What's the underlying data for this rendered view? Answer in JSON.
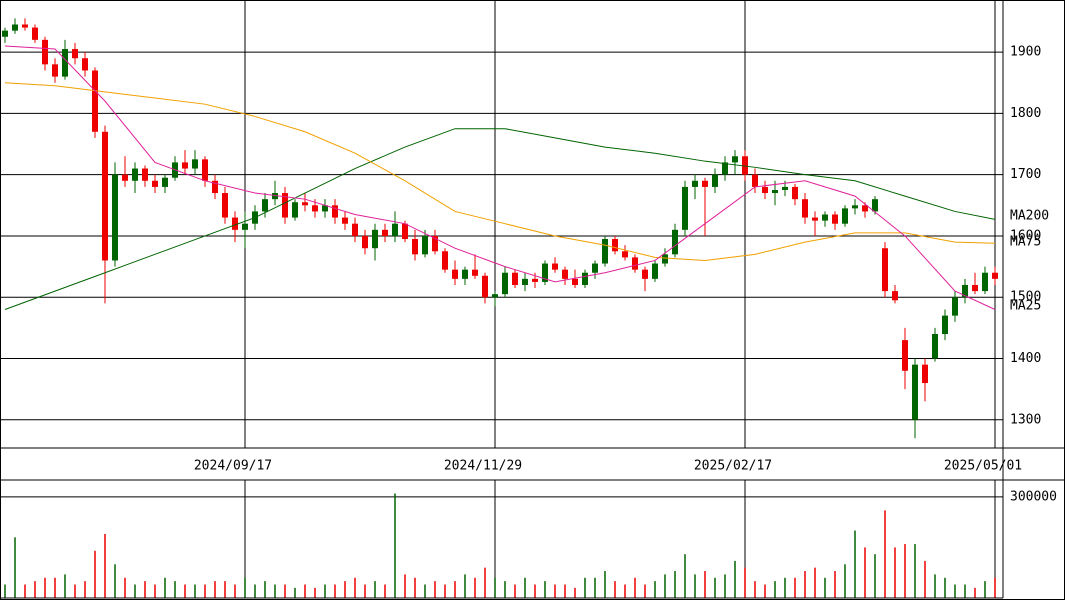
{
  "chart_data": [
    {
      "type": "candlestick",
      "categories": [
        null,
        null,
        null,
        null,
        null,
        null,
        null,
        null,
        null,
        null,
        null,
        null,
        null,
        null,
        null,
        null,
        null,
        null,
        null,
        null,
        null,
        null,
        null,
        null,
        "2024/09/17",
        null,
        null,
        null,
        null,
        null,
        null,
        null,
        null,
        null,
        null,
        null,
        null,
        null,
        null,
        null,
        null,
        null,
        null,
        null,
        null,
        null,
        null,
        null,
        null,
        "2024/11/29",
        null,
        null,
        null,
        null,
        null,
        null,
        null,
        null,
        null,
        null,
        null,
        null,
        null,
        null,
        null,
        null,
        null,
        null,
        null,
        null,
        null,
        null,
        null,
        null,
        "2025/02/17",
        null,
        null,
        null,
        null,
        null,
        null,
        null,
        null,
        null,
        null,
        null,
        null,
        null,
        null,
        null,
        null,
        null,
        null,
        null,
        null,
        null,
        null,
        null,
        null,
        "2025/05/01"
      ],
      "open": [
        1925,
        1935,
        1945,
        1940,
        1920,
        1880,
        1860,
        1905,
        1890,
        1870,
        1770,
        1560,
        1700,
        1690,
        1710,
        1690,
        1680,
        1695,
        1720,
        1710,
        1725,
        1690,
        1670,
        1630,
        1610,
        1620,
        1640,
        1660,
        1670,
        1630,
        1655,
        1650,
        1640,
        1650,
        1630,
        1620,
        1600,
        1580,
        1610,
        1600,
        1620,
        1595,
        1570,
        1600,
        1575,
        1545,
        1530,
        1545,
        1535,
        1500,
        1505,
        1540,
        1520,
        1530,
        1525,
        1555,
        1545,
        1530,
        1520,
        1540,
        1555,
        1595,
        1575,
        1565,
        1545,
        1530,
        1555,
        1570,
        1610,
        1680,
        1690,
        1680,
        1700,
        1720,
        1730,
        1700,
        1680,
        1670,
        1675,
        1680,
        1660,
        1630,
        1625,
        1635,
        1620,
        1645,
        1650,
        1640,
        1580,
        1510,
        1430,
        1300,
        1390,
        1400,
        1440,
        1470,
        1500,
        1520,
        1510,
        1540
      ],
      "high": [
        1940,
        1955,
        1955,
        1945,
        1925,
        1890,
        1920,
        1915,
        1900,
        1875,
        1780,
        1720,
        1730,
        1720,
        1715,
        1700,
        1700,
        1730,
        1740,
        1740,
        1730,
        1700,
        1680,
        1640,
        1640,
        1650,
        1670,
        1690,
        1680,
        1660,
        1670,
        1660,
        1660,
        1660,
        1640,
        1630,
        1610,
        1620,
        1620,
        1640,
        1625,
        1610,
        1610,
        1610,
        1580,
        1560,
        1550,
        1570,
        1540,
        1510,
        1550,
        1545,
        1540,
        1540,
        1560,
        1565,
        1550,
        1545,
        1545,
        1560,
        1600,
        1600,
        1585,
        1570,
        1550,
        1560,
        1580,
        1620,
        1690,
        1700,
        1695,
        1710,
        1730,
        1740,
        1740,
        1710,
        1690,
        1690,
        1690,
        1685,
        1670,
        1640,
        1640,
        1640,
        1650,
        1660,
        1655,
        1665,
        1590,
        1520,
        1450,
        1400,
        1400,
        1450,
        1480,
        1510,
        1530,
        1540,
        1550,
        1550
      ],
      "low": [
        1915,
        1930,
        1935,
        1915,
        1870,
        1850,
        1855,
        1880,
        1860,
        1760,
        1490,
        1550,
        1680,
        1670,
        1680,
        1670,
        1670,
        1690,
        1700,
        1700,
        1680,
        1660,
        1620,
        1590,
        1580,
        1610,
        1630,
        1650,
        1620,
        1625,
        1640,
        1630,
        1630,
        1620,
        1610,
        1590,
        1570,
        1560,
        1590,
        1590,
        1590,
        1560,
        1565,
        1570,
        1540,
        1520,
        1520,
        1530,
        1490,
        1485,
        1500,
        1515,
        1510,
        1515,
        1520,
        1540,
        1520,
        1515,
        1515,
        1530,
        1550,
        1570,
        1560,
        1540,
        1510,
        1525,
        1550,
        1565,
        1600,
        1660,
        1600,
        1670,
        1690,
        1700,
        1690,
        1670,
        1660,
        1650,
        1665,
        1650,
        1620,
        1600,
        1615,
        1610,
        1615,
        1635,
        1630,
        1635,
        1500,
        1490,
        1350,
        1270,
        1330,
        1395,
        1430,
        1460,
        1490,
        1505,
        1505,
        1520
      ],
      "close": [
        1935,
        1945,
        1940,
        1920,
        1880,
        1860,
        1905,
        1890,
        1870,
        1770,
        1560,
        1700,
        1690,
        1710,
        1690,
        1680,
        1695,
        1720,
        1710,
        1725,
        1690,
        1670,
        1630,
        1610,
        1620,
        1640,
        1660,
        1670,
        1630,
        1655,
        1650,
        1640,
        1650,
        1630,
        1620,
        1600,
        1580,
        1610,
        1600,
        1620,
        1595,
        1570,
        1600,
        1575,
        1545,
        1530,
        1545,
        1535,
        1500,
        1505,
        1540,
        1520,
        1530,
        1525,
        1555,
        1545,
        1530,
        1520,
        1540,
        1555,
        1595,
        1575,
        1565,
        1545,
        1530,
        1555,
        1570,
        1610,
        1680,
        1690,
        1680,
        1700,
        1720,
        1730,
        1700,
        1680,
        1670,
        1675,
        1680,
        1660,
        1630,
        1625,
        1635,
        1620,
        1645,
        1650,
        1640,
        1660,
        1510,
        1495,
        1380,
        1390,
        1360,
        1440,
        1470,
        1500,
        1520,
        1510,
        1540,
        1530
      ],
      "up_color": "#006400",
      "down_color": "#ee0000",
      "ylim": [
        1254,
        1985
      ],
      "yticks": [
        1300,
        1400,
        1500,
        1600,
        1700,
        1800,
        1900
      ],
      "grid": true,
      "series": [
        {
          "name": "MA200",
          "color": "#006400",
          "x": [
            0,
            5,
            10,
            15,
            20,
            25,
            30,
            35,
            40,
            45,
            50,
            55,
            60,
            65,
            70,
            75,
            80,
            85,
            90,
            95,
            99
          ],
          "values": [
            1480,
            1510,
            1540,
            1570,
            1600,
            1630,
            1670,
            1710,
            1745,
            1775,
            1775,
            1760,
            1745,
            1735,
            1722,
            1712,
            1700,
            1690,
            1665,
            1640,
            1627
          ]
        },
        {
          "name": "MA75",
          "color": "#f0a000",
          "x": [
            0,
            5,
            10,
            15,
            20,
            25,
            30,
            35,
            40,
            45,
            50,
            55,
            60,
            65,
            70,
            75,
            80,
            85,
            90,
            95,
            99
          ],
          "values": [
            1850,
            1845,
            1835,
            1825,
            1815,
            1795,
            1770,
            1735,
            1690,
            1640,
            1620,
            1600,
            1585,
            1565,
            1560,
            1570,
            1590,
            1605,
            1605,
            1590,
            1588
          ]
        },
        {
          "name": "MA25",
          "color": "#e0209a",
          "x": [
            0,
            5,
            10,
            15,
            20,
            25,
            30,
            35,
            40,
            45,
            50,
            55,
            60,
            65,
            70,
            75,
            80,
            85,
            90,
            95,
            99
          ],
          "values": [
            1910,
            1905,
            1820,
            1720,
            1690,
            1670,
            1660,
            1635,
            1620,
            1580,
            1550,
            1525,
            1540,
            1560,
            1620,
            1680,
            1690,
            1665,
            1600,
            1510,
            1480
          ]
        }
      ]
    },
    {
      "type": "volume",
      "values": [
        40000,
        180000,
        40000,
        50000,
        60000,
        60000,
        70000,
        40000,
        50000,
        140000,
        190000,
        100000,
        60000,
        40000,
        50000,
        40000,
        60000,
        50000,
        40000,
        40000,
        40000,
        50000,
        50000,
        40000,
        60000,
        40000,
        50000,
        40000,
        40000,
        30000,
        40000,
        30000,
        40000,
        40000,
        50000,
        60000,
        40000,
        50000,
        40000,
        310000,
        70000,
        60000,
        40000,
        50000,
        40000,
        50000,
        70000,
        60000,
        90000,
        60000,
        50000,
        40000,
        60000,
        40000,
        50000,
        40000,
        40000,
        30000,
        60000,
        60000,
        80000,
        50000,
        40000,
        60000,
        40000,
        50000,
        70000,
        80000,
        130000,
        70000,
        80000,
        60000,
        70000,
        110000,
        90000,
        50000,
        40000,
        50000,
        60000,
        60000,
        80000,
        90000,
        60000,
        80000,
        100000,
        200000,
        150000,
        130000,
        260000,
        150000,
        160000,
        160000,
        110000,
        70000,
        60000,
        40000,
        40000,
        30000,
        50000,
        60000
      ],
      "ylim": [
        0,
        350000
      ],
      "yticks": [
        300000
      ]
    }
  ]
}
